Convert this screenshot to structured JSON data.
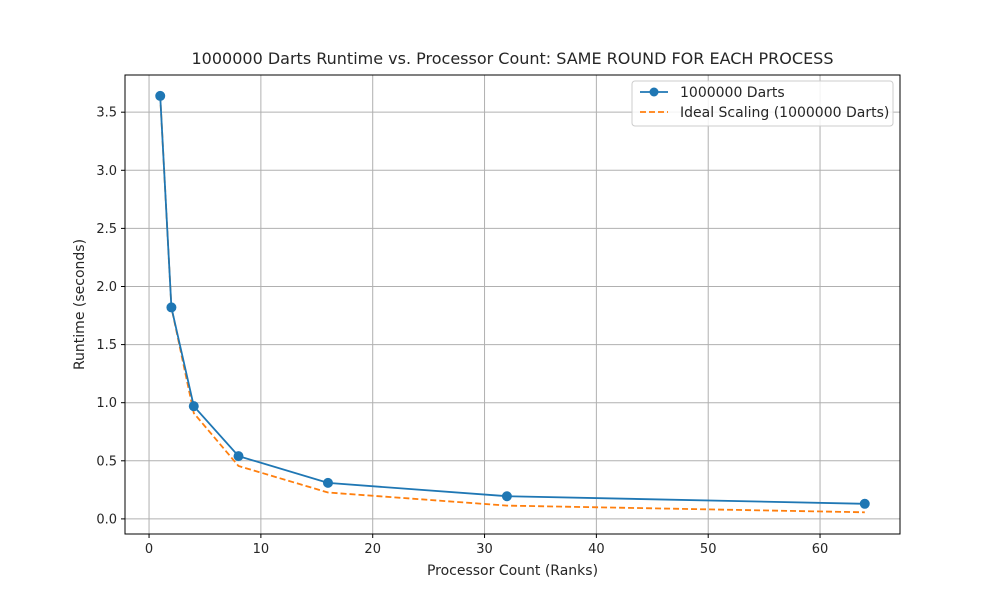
{
  "chart_data": {
    "type": "line",
    "title": "1000000 Darts Runtime vs. Processor Count: SAME ROUND FOR EACH PROCESS",
    "xlabel": "Processor Count (Ranks)",
    "ylabel": "Runtime (seconds)",
    "xlim": [
      -2.15,
      67.15
    ],
    "ylim": [
      -0.13,
      3.82
    ],
    "xticks": [
      0,
      10,
      20,
      30,
      40,
      50,
      60
    ],
    "yticks": [
      0.0,
      0.5,
      1.0,
      1.5,
      2.0,
      2.5,
      3.0,
      3.5
    ],
    "xtick_labels": [
      "0",
      "10",
      "20",
      "30",
      "40",
      "50",
      "60"
    ],
    "ytick_labels": [
      "0.0",
      "0.5",
      "1.0",
      "1.5",
      "2.0",
      "2.5",
      "3.0",
      "3.5"
    ],
    "grid": true,
    "legend_position": "top-right",
    "series": [
      {
        "name": "1000000 Darts",
        "color": "#1f77b4",
        "style": "solid",
        "marker": "circle",
        "x": [
          1,
          2,
          4,
          8,
          16,
          32,
          64
        ],
        "y": [
          3.64,
          1.82,
          0.97,
          0.54,
          0.31,
          0.195,
          0.13
        ]
      },
      {
        "name": "Ideal Scaling (1000000 Darts)",
        "color": "#ff7f0e",
        "style": "dashed",
        "marker": "none",
        "x": [
          1,
          2,
          4,
          8,
          16,
          32,
          64
        ],
        "y": [
          3.64,
          1.82,
          0.91,
          0.455,
          0.2275,
          0.114,
          0.057
        ]
      }
    ]
  }
}
